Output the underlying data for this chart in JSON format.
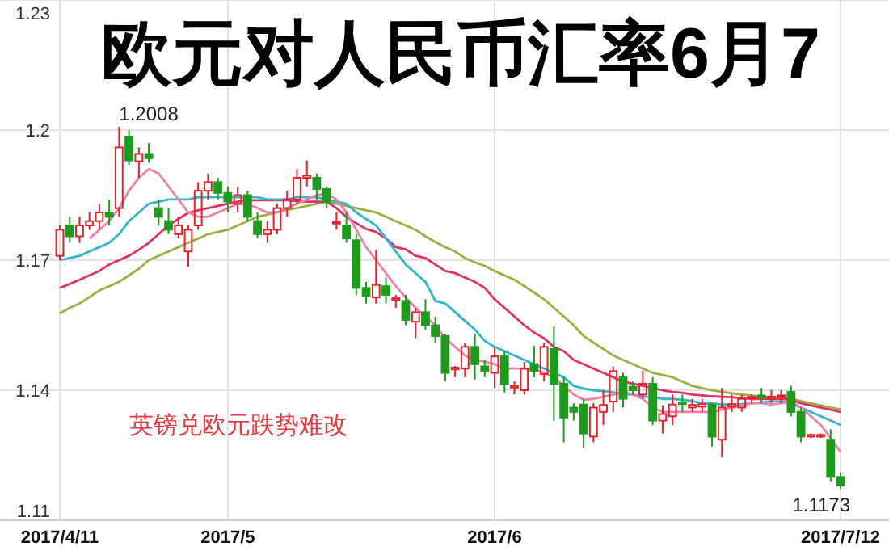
{
  "chart_data": {
    "type": "candlestick",
    "title": "欧元对人民币汇率6月7",
    "annotations": [
      "1.2008",
      "1.1173",
      "英镑兑欧元跌势难改"
    ],
    "categories": [
      "2017/4/11",
      null,
      null,
      null,
      null,
      null,
      null,
      null,
      null,
      null,
      null,
      null,
      null,
      null,
      null,
      null,
      null,
      "2017/5",
      null,
      null,
      null,
      null,
      null,
      null,
      null,
      null,
      null,
      null,
      null,
      null,
      null,
      null,
      null,
      null,
      null,
      null,
      null,
      null,
      null,
      null,
      null,
      null,
      null,
      null,
      "2017/6",
      null,
      null,
      null,
      null,
      null,
      null,
      null,
      null,
      null,
      null,
      null,
      null,
      null,
      null,
      null,
      null,
      null,
      null,
      null,
      null,
      null,
      null,
      null,
      null,
      null,
      null,
      null,
      null,
      null,
      null,
      null,
      null,
      null,
      null,
      "2017/7/12"
    ],
    "ohlc": [
      [
        1.171,
        1.178,
        1.17,
        1.177
      ],
      [
        1.178,
        1.18,
        1.174,
        1.1755
      ],
      [
        1.1755,
        1.18,
        1.174,
        1.178
      ],
      [
        1.178,
        1.181,
        1.177,
        1.179
      ],
      [
        1.179,
        1.183,
        1.177,
        1.181
      ],
      [
        1.181,
        1.184,
        1.178,
        1.18
      ],
      [
        1.182,
        1.2008,
        1.18,
        1.196
      ],
      [
        1.1985,
        1.2,
        1.192,
        1.193
      ],
      [
        1.1928,
        1.196,
        1.189,
        1.1945
      ],
      [
        1.1945,
        1.197,
        1.1925,
        1.1935
      ],
      [
        1.182,
        1.184,
        1.178,
        1.18
      ],
      [
        1.179,
        1.182,
        1.176,
        1.177
      ],
      [
        1.176,
        1.18,
        1.175,
        1.178
      ],
      [
        1.172,
        1.178,
        1.1685,
        1.177
      ],
      [
        1.178,
        1.188,
        1.177,
        1.186
      ],
      [
        1.186,
        1.19,
        1.184,
        1.188
      ],
      [
        1.188,
        1.189,
        1.184,
        1.1855
      ],
      [
        1.1855,
        1.187,
        1.181,
        1.1835
      ],
      [
        1.183,
        1.187,
        1.181,
        1.185
      ],
      [
        1.185,
        1.186,
        1.179,
        1.18
      ],
      [
        1.179,
        1.181,
        1.175,
        1.176
      ],
      [
        1.176,
        1.179,
        1.174,
        1.177
      ],
      [
        1.177,
        1.183,
        1.176,
        1.182
      ],
      [
        1.182,
        1.186,
        1.18,
        1.184
      ],
      [
        1.184,
        1.191,
        1.183,
        1.189
      ],
      [
        1.189,
        1.193,
        1.187,
        1.1895
      ],
      [
        1.189,
        1.19,
        1.184,
        1.1864
      ],
      [
        1.1864,
        1.187,
        1.182,
        1.1835
      ],
      [
        1.1785,
        1.181,
        1.177,
        1.1788
      ],
      [
        1.178,
        1.181,
        1.174,
        1.175
      ],
      [
        1.1746,
        1.176,
        1.162,
        1.1636
      ],
      [
        1.1636,
        1.165,
        1.16,
        1.1617
      ],
      [
        1.1614,
        1.1724,
        1.16,
        1.1643
      ],
      [
        1.164,
        1.166,
        1.16,
        1.162
      ],
      [
        1.1608,
        1.162,
        1.159,
        1.1612
      ],
      [
        1.1606,
        1.162,
        1.155,
        1.1562
      ],
      [
        1.1558,
        1.159,
        1.152,
        1.158
      ],
      [
        1.158,
        1.161,
        1.154,
        1.155
      ],
      [
        1.155,
        1.157,
        1.151,
        1.1525
      ],
      [
        1.1525,
        1.153,
        1.142,
        1.144
      ],
      [
        1.1448,
        1.1456,
        1.143,
        1.1452
      ],
      [
        1.145,
        1.151,
        1.143,
        1.15
      ],
      [
        1.15,
        1.153,
        1.1425,
        1.146
      ],
      [
        1.1455,
        1.147,
        1.143,
        1.1445
      ],
      [
        1.144,
        1.15,
        1.1405,
        1.1478
      ],
      [
        1.1478,
        1.149,
        1.1395,
        1.1415
      ],
      [
        1.1406,
        1.142,
        1.139,
        1.141
      ],
      [
        1.14,
        1.1465,
        1.139,
        1.145
      ],
      [
        1.146,
        1.1502,
        1.143,
        1.1445
      ],
      [
        1.1437,
        1.151,
        1.142,
        1.15
      ],
      [
        1.1495,
        1.1547,
        1.133,
        1.1415
      ],
      [
        1.1415,
        1.143,
        1.128,
        1.1337
      ],
      [
        1.136,
        1.137,
        1.133,
        1.135
      ],
      [
        1.1367,
        1.138,
        1.1268,
        1.13
      ],
      [
        1.1293,
        1.137,
        1.128,
        1.136
      ],
      [
        1.135,
        1.14,
        1.132,
        1.1366
      ],
      [
        1.1374,
        1.1455,
        1.135,
        1.1444
      ],
      [
        1.143,
        1.144,
        1.136,
        1.138
      ],
      [
        1.1408,
        1.142,
        1.139,
        1.14
      ],
      [
        1.139,
        1.1445,
        1.138,
        1.1415
      ],
      [
        1.1415,
        1.143,
        1.132,
        1.133
      ],
      [
        1.133,
        1.1365,
        1.13,
        1.1345
      ],
      [
        1.134,
        1.139,
        1.132,
        1.1367
      ],
      [
        1.1372,
        1.139,
        1.135,
        1.1368
      ],
      [
        1.136,
        1.138,
        1.135,
        1.1366
      ],
      [
        1.1362,
        1.138,
        1.135,
        1.1368
      ],
      [
        1.1367,
        1.137,
        1.127,
        1.1293
      ],
      [
        1.1286,
        1.1405,
        1.1245,
        1.136
      ],
      [
        1.1362,
        1.139,
        1.135,
        1.1368
      ],
      [
        1.136,
        1.139,
        1.135,
        1.138
      ],
      [
        1.1382,
        1.139,
        1.137,
        1.1385
      ],
      [
        1.1388,
        1.1405,
        1.137,
        1.1383
      ],
      [
        1.138,
        1.14,
        1.137,
        1.1385
      ],
      [
        1.1385,
        1.14,
        1.137,
        1.1388
      ],
      [
        1.1396,
        1.141,
        1.134,
        1.135
      ],
      [
        1.135,
        1.136,
        1.128,
        1.1293
      ],
      [
        1.1293,
        1.13,
        1.129,
        1.1297
      ],
      [
        1.1293,
        1.13,
        1.129,
        1.1297
      ],
      [
        1.1286,
        1.131,
        1.119,
        1.12
      ],
      [
        1.12,
        1.121,
        1.1173,
        1.118
      ]
    ],
    "series": [
      {
        "type": "line",
        "color": "#99b040",
        "values": [
          1.1577,
          1.159,
          1.16,
          1.1615,
          1.163,
          1.164,
          1.165,
          1.1665,
          1.168,
          1.17,
          1.171,
          1.172,
          1.173,
          1.174,
          1.175,
          1.176,
          1.1765,
          1.177,
          1.178,
          1.179,
          1.18,
          1.1805,
          1.181,
          1.1816,
          1.182,
          1.1825,
          1.183,
          1.1835,
          1.183,
          1.1825,
          1.182,
          1.1815,
          1.181,
          1.18,
          1.179,
          1.178,
          1.177,
          1.1755,
          1.1742,
          1.173,
          1.172,
          1.1705,
          1.1695,
          1.1687,
          1.1675,
          1.1665,
          1.1655,
          1.164,
          1.1625,
          1.161,
          1.159,
          1.157,
          1.155,
          1.1525,
          1.151,
          1.1495,
          1.148,
          1.147,
          1.146,
          1.145,
          1.144,
          1.1435,
          1.143,
          1.142,
          1.141,
          1.1405,
          1.14,
          1.1396,
          1.1393,
          1.139,
          1.1388,
          1.1385,
          1.1385,
          1.1383,
          1.138,
          1.1375,
          1.137,
          1.1365,
          1.136,
          1.1356
        ]
      },
      {
        "type": "line",
        "color": "#e0306a",
        "values": [
          1.1636,
          1.1645,
          1.1655,
          1.1665,
          1.1675,
          1.169,
          1.17,
          1.171,
          1.1724,
          1.174,
          1.176,
          1.178,
          1.1795,
          1.1809,
          1.1815,
          1.182,
          1.1825,
          1.183,
          1.1835,
          1.1838,
          1.1838,
          1.1838,
          1.1838,
          1.1838,
          1.1836,
          1.1835,
          1.1835,
          1.1835,
          1.182,
          1.18,
          1.1785,
          1.1772,
          1.1765,
          1.175,
          1.173,
          1.1725,
          1.171,
          1.1705,
          1.169,
          1.1675,
          1.167,
          1.166,
          1.165,
          1.1636,
          1.161,
          1.159,
          1.157,
          1.155,
          1.1533,
          1.152,
          1.15,
          1.149,
          1.147,
          1.146,
          1.145,
          1.144,
          1.143,
          1.142,
          1.1415,
          1.141,
          1.1405,
          1.14,
          1.1396,
          1.1394,
          1.139,
          1.1388,
          1.1386,
          1.1385,
          1.1384,
          1.1382,
          1.138,
          1.138,
          1.138,
          1.138,
          1.1378,
          1.137,
          1.1365,
          1.136,
          1.1355,
          1.135
        ]
      },
      {
        "type": "line",
        "color": "#33b5cc",
        "values": [
          1.17,
          1.1705,
          1.171,
          1.172,
          1.173,
          1.174,
          1.176,
          1.179,
          1.181,
          1.183,
          1.1835,
          1.184,
          1.184,
          1.184,
          1.1845,
          1.1845,
          1.1845,
          1.1845,
          1.1845,
          1.1845,
          1.1845,
          1.184,
          1.184,
          1.184,
          1.1845,
          1.1845,
          1.1845,
          1.184,
          1.1835,
          1.183,
          1.181,
          1.1795,
          1.178,
          1.175,
          1.172,
          1.169,
          1.167,
          1.165,
          1.1606,
          1.16,
          1.158,
          1.156,
          1.154,
          1.1514,
          1.15,
          1.149,
          1.148,
          1.147,
          1.146,
          1.145,
          1.144,
          1.143,
          1.141,
          1.1404,
          1.14,
          1.1398,
          1.1395,
          1.139,
          1.139,
          1.1385,
          1.1385,
          1.138,
          1.138,
          1.1378,
          1.1375,
          1.137,
          1.137,
          1.1367,
          1.1367,
          1.1368,
          1.137,
          1.1372,
          1.1374,
          1.1374,
          1.137,
          1.136,
          1.135,
          1.134,
          1.133,
          1.132
        ]
      },
      {
        "type": "line",
        "color": "#f080a8",
        "values": [
          null,
          null,
          null,
          1.175,
          1.177,
          1.179,
          1.182,
          1.186,
          1.189,
          1.191,
          1.19,
          1.187,
          1.184,
          1.181,
          1.18,
          1.18,
          1.181,
          1.182,
          1.183,
          1.183,
          1.182,
          1.181,
          1.181,
          1.182,
          1.183,
          1.184,
          1.185,
          1.1853,
          1.184,
          1.181,
          1.177,
          1.173,
          1.17,
          1.167,
          1.164,
          1.1614,
          1.159,
          1.157,
          1.155,
          1.152,
          1.15,
          1.148,
          1.147,
          1.1466,
          1.146,
          1.145,
          1.145,
          1.145,
          1.1448,
          1.144,
          1.143,
          1.141,
          1.139,
          1.1378,
          1.138,
          1.1385,
          1.139,
          1.1396,
          1.139,
          1.138,
          1.136,
          1.135,
          1.135,
          1.135,
          1.135,
          1.135,
          1.135,
          1.1355,
          1.136,
          1.1365,
          1.137,
          1.137,
          1.1367,
          1.137,
          1.1374,
          1.136,
          1.134,
          1.132,
          1.129,
          1.1257
        ]
      }
    ],
    "ylim": [
      1.11,
      1.23
    ],
    "yticks": [
      1.11,
      1.14,
      1.17,
      1.2,
      1.23
    ],
    "grid": true
  }
}
